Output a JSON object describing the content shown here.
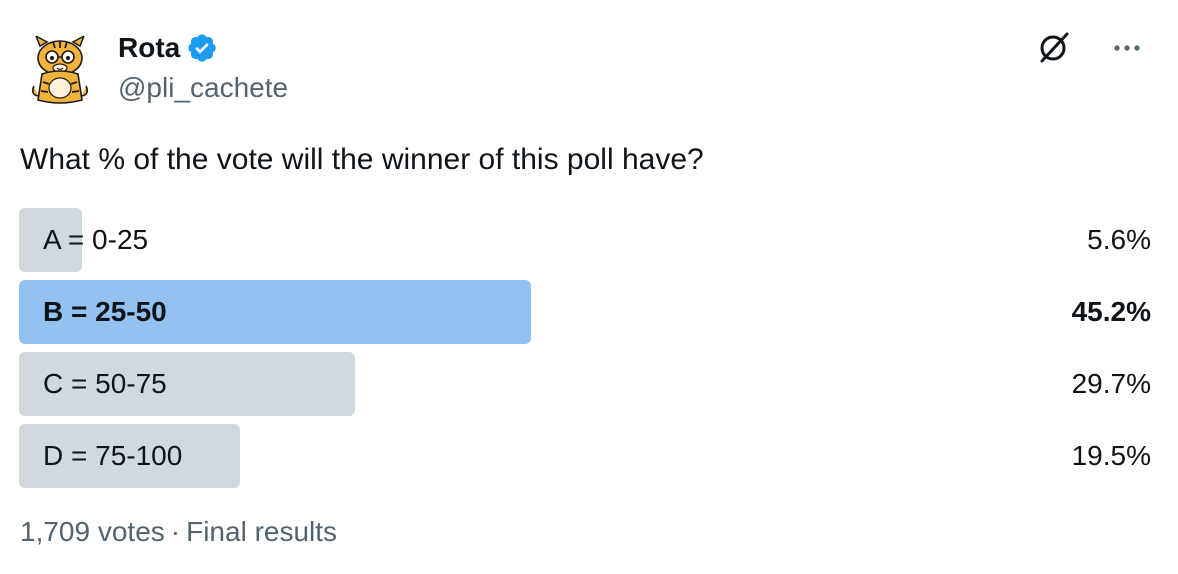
{
  "author": {
    "name": "Rota",
    "handle": "@pli_cachete",
    "verified": true,
    "avatar_icon": "cartoon-tiger-avatar-icon"
  },
  "header_actions": {
    "grok_icon": "grok-icon",
    "more_icon": "more-options-icon"
  },
  "tweet": {
    "text": "What % of the vote will the winner of this poll have?"
  },
  "poll": {
    "options": [
      {
        "label": "A = 0-25",
        "percent_text": "5.6%",
        "percent": 5.6,
        "winner": false
      },
      {
        "label": "B = 25-50",
        "percent_text": "45.2%",
        "percent": 45.2,
        "winner": true
      },
      {
        "label": "C = 50-75",
        "percent_text": "29.7%",
        "percent": 29.7,
        "winner": false
      },
      {
        "label": "D = 75-100",
        "percent_text": "19.5%",
        "percent": 19.5,
        "winner": false
      }
    ],
    "votes": "1,709 votes",
    "separator": "·",
    "status": "Final results"
  },
  "colors": {
    "bar_default": "#cfd9de",
    "bar_winner": "#93c2f1",
    "verified_blue": "#1d9bf0",
    "secondary_text": "#536471",
    "primary_text": "#0f1419"
  }
}
